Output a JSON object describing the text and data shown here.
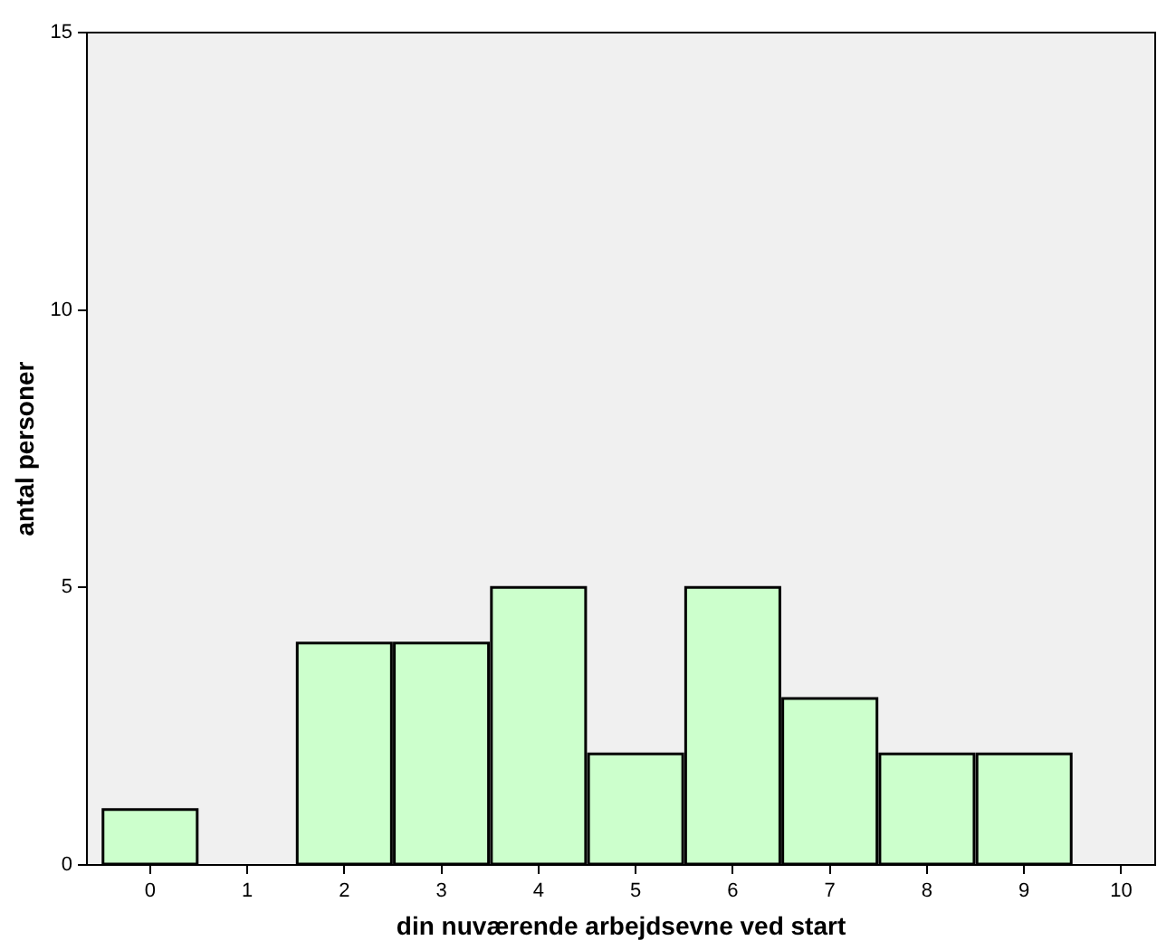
{
  "chart_data": {
    "type": "histogram",
    "xlabel": "din nuværende arbejdsevne ved start",
    "ylabel": "antal personer",
    "bins": [
      -0.5,
      0.5,
      1.5,
      2.5,
      3.5,
      4.5,
      5.5,
      6.5,
      7.5,
      8.5,
      9.5
    ],
    "values": [
      1,
      0,
      4,
      4,
      5,
      2,
      5,
      3,
      2,
      2
    ],
    "color": "#ccffcc",
    "xlim": [
      -0.65,
      10.35
    ],
    "xticks": [
      0,
      1,
      2,
      3,
      4,
      5,
      6,
      7,
      8,
      9,
      10
    ],
    "ylim": [
      0,
      15
    ],
    "yticks": [
      0,
      5,
      10,
      15
    ],
    "grid": false,
    "legend": false
  }
}
